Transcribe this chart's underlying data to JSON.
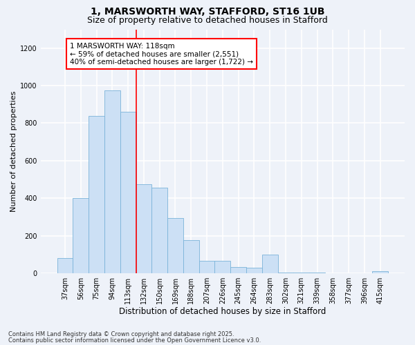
{
  "title_line1": "1, MARSWORTH WAY, STAFFORD, ST16 1UB",
  "title_line2": "Size of property relative to detached houses in Stafford",
  "xlabel": "Distribution of detached houses by size in Stafford",
  "ylabel": "Number of detached properties",
  "categories": [
    "37sqm",
    "56sqm",
    "75sqm",
    "94sqm",
    "113sqm",
    "132sqm",
    "150sqm",
    "169sqm",
    "188sqm",
    "207sqm",
    "226sqm",
    "245sqm",
    "264sqm",
    "283sqm",
    "302sqm",
    "321sqm",
    "339sqm",
    "358sqm",
    "377sqm",
    "396sqm",
    "415sqm"
  ],
  "values": [
    80,
    400,
    840,
    975,
    860,
    475,
    455,
    295,
    175,
    65,
    65,
    35,
    30,
    100,
    5,
    5,
    5,
    0,
    0,
    0,
    10
  ],
  "bar_color": "#cce0f5",
  "bar_edge_color": "#7ab3d9",
  "red_line_x": 4.5,
  "annotation_text": "1 MARSWORTH WAY: 118sqm\n← 59% of detached houses are smaller (2,551)\n40% of semi-detached houses are larger (1,722) →",
  "annotation_box_color": "white",
  "annotation_box_edge_color": "red",
  "ylim": [
    0,
    1300
  ],
  "yticks": [
    0,
    200,
    400,
    600,
    800,
    1000,
    1200
  ],
  "footer_line1": "Contains HM Land Registry data © Crown copyright and database right 2025.",
  "footer_line2": "Contains public sector information licensed under the Open Government Licence v3.0.",
  "background_color": "#eef2f9",
  "grid_color": "white",
  "title_fontsize": 10,
  "subtitle_fontsize": 9,
  "tick_fontsize": 7,
  "xlabel_fontsize": 8.5,
  "ylabel_fontsize": 8,
  "annotation_fontsize": 7.5,
  "footer_fontsize": 6
}
